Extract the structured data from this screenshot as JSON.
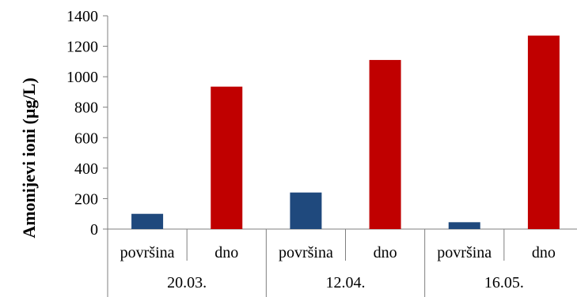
{
  "chart_data": {
    "type": "bar",
    "ylabel": "Amonijevi ioni (µg/L)",
    "xlabel": "",
    "ylim": [
      0,
      1400
    ],
    "yticks": [
      0,
      200,
      400,
      600,
      800,
      1000,
      1200,
      1400
    ],
    "groups": [
      "20.03.",
      "12.04.",
      "16.05."
    ],
    "categories": [
      "površina",
      "dno",
      "površina",
      "dno",
      "površina",
      "dno"
    ],
    "values": [
      100,
      935,
      240,
      1110,
      45,
      1270
    ],
    "colors": {
      "površina": "#1f497d",
      "dno": "#c00000"
    },
    "grid": false,
    "legend": "none"
  }
}
